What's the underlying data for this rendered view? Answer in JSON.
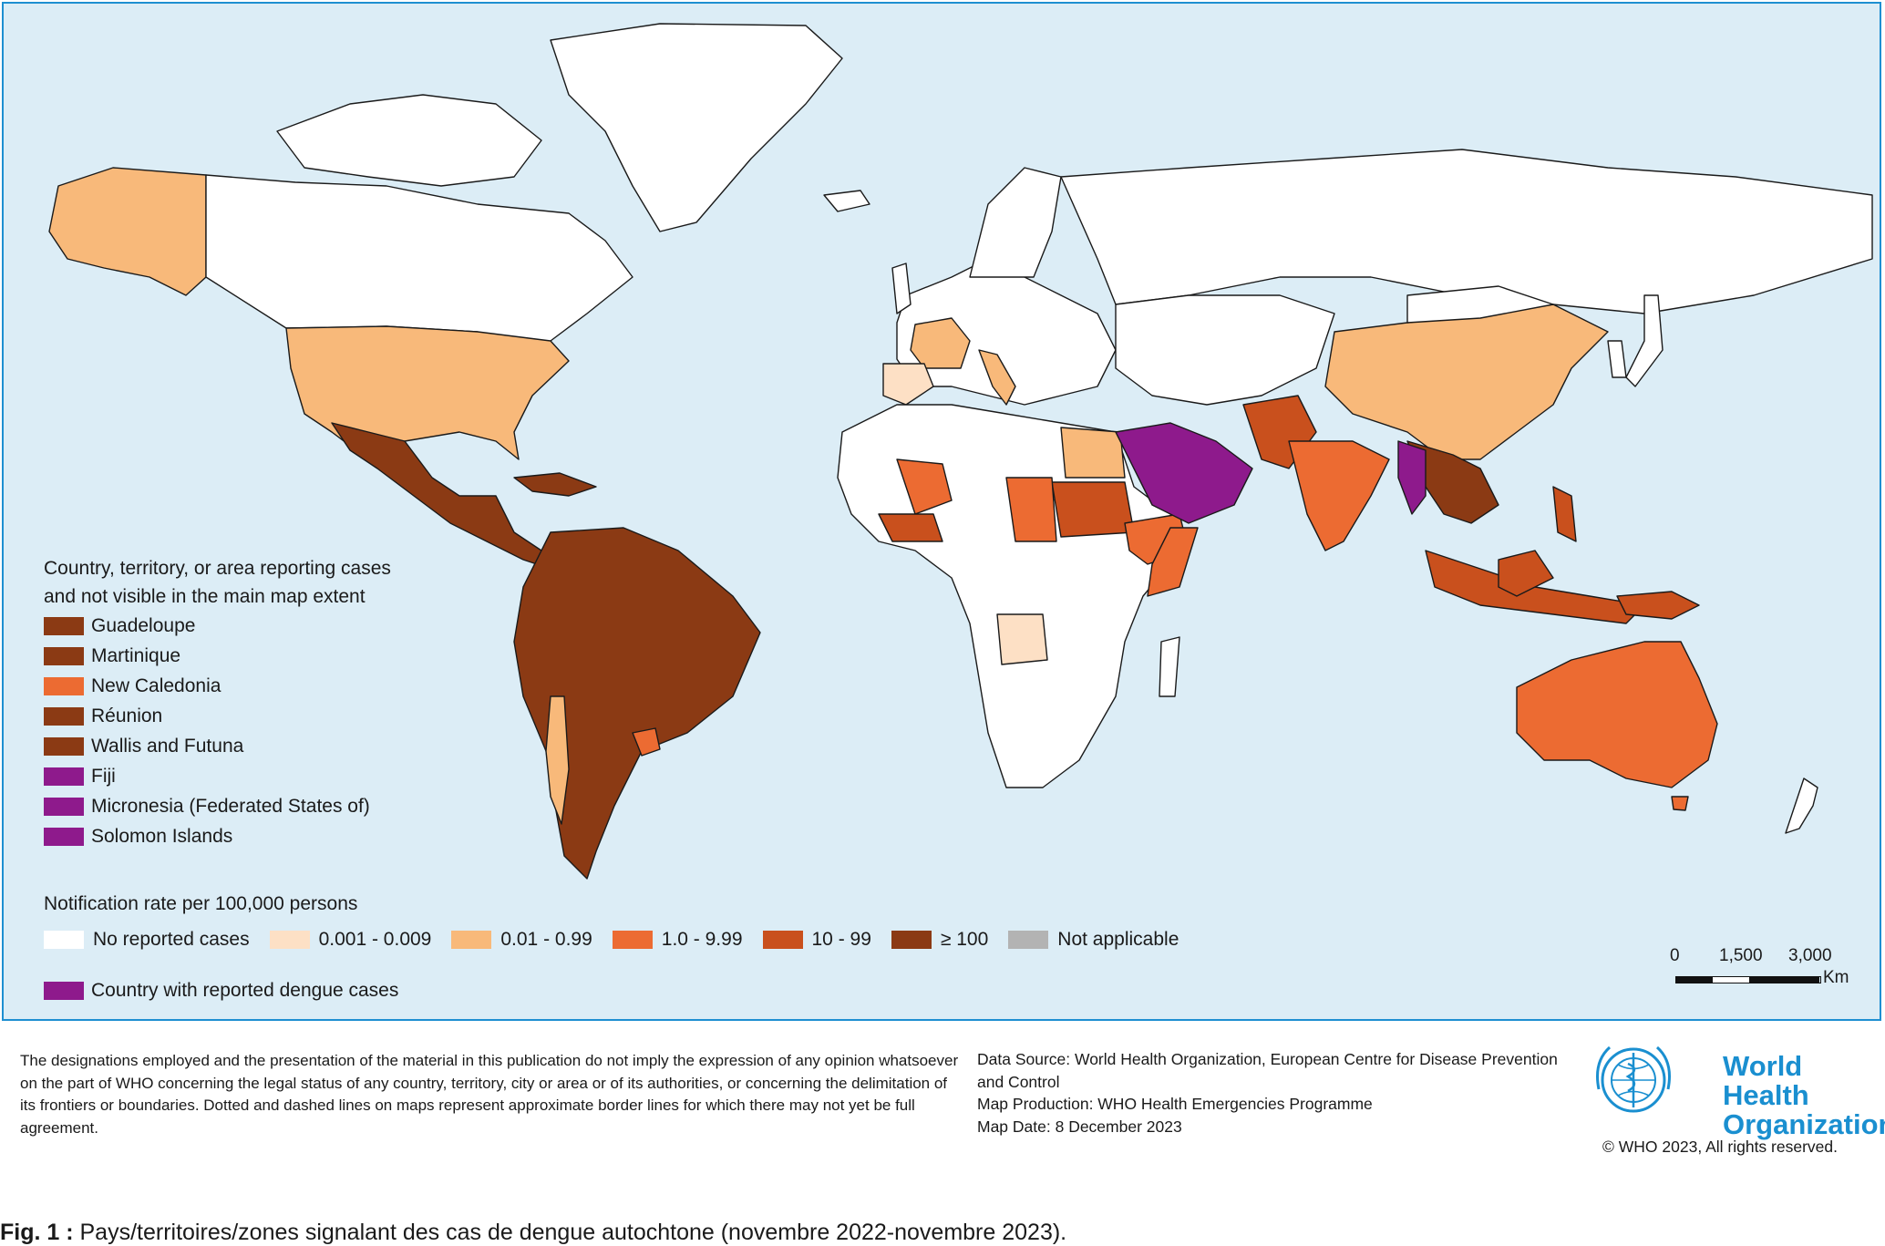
{
  "colors": {
    "ocean": "#dcedf6",
    "no_cases": "#ffffff",
    "r0001": "#fde0c5",
    "r001": "#f8b97a",
    "r1": "#ec6b32",
    "r10": "#c9501d",
    "r100": "#8b3a14",
    "na": "#b3b3b3",
    "dengue": "#8e1a8c",
    "border": "#1e8fd1"
  },
  "inset_legend": {
    "title_line1": "Country, territory, or area reporting cases",
    "title_line2": "and not visible in the main map extent",
    "items": [
      {
        "label": "Guadeloupe",
        "color": "#8b3a14"
      },
      {
        "label": "Martinique",
        "color": "#8b3a14"
      },
      {
        "label": "New Caledonia",
        "color": "#ec6b32"
      },
      {
        "label": "Réunion",
        "color": "#8b3a14"
      },
      {
        "label": "Wallis and Futuna",
        "color": "#8b3a14"
      },
      {
        "label": "Fiji",
        "color": "#8e1a8c"
      },
      {
        "label": "Micronesia (Federated States of)",
        "color": "#8e1a8c"
      },
      {
        "label": "Solomon Islands",
        "color": "#8e1a8c"
      }
    ]
  },
  "rate_legend": {
    "title": "Notification rate per 100,000 persons",
    "items": [
      {
        "label": "No reported cases",
        "color": "#ffffff"
      },
      {
        "label": "0.001 - 0.009",
        "color": "#fde0c5"
      },
      {
        "label": "0.01 - 0.99",
        "color": "#f8b97a"
      },
      {
        "label": "1.0 - 9.99",
        "color": "#ec6b32"
      },
      {
        "label": "10 - 99",
        "color": "#c9501d"
      },
      {
        "label": "≥ 100",
        "color": "#8b3a14"
      },
      {
        "label": "Not applicable",
        "color": "#b3b3b3"
      }
    ],
    "dengue_label": "Country with reported dengue cases",
    "dengue_color": "#8e1a8c"
  },
  "scale_bar": {
    "labels": [
      "0",
      "1,500",
      "3,000"
    ],
    "unit": "Km"
  },
  "footer": {
    "disclaimer": "The designations employed and the presentation of the material in this publication do not imply the expression of any opinion whatsoever on the part of WHO concerning the legal status of any country, territory, city or area or of its authorities, or concerning the delimitation of its frontiers or boundaries. Dotted and dashed lines on maps represent approximate border lines for which there may not yet be full agreement.",
    "data_source": "Data Source: World Health Organization, European Centre for Disease Prevention and Control",
    "map_production": "Map Production: WHO Health Emergencies Programme",
    "map_date": "Map Date: 8 December 2023",
    "org_line1": "World Health",
    "org_line2": "Organization",
    "copyright": "© WHO 2023, All rights reserved."
  },
  "caption": {
    "label": "Fig. 1 :",
    "text": " Pays/territoires/zones signalant des cas de dengue autochtone (novembre 2022-novembre 2023)."
  }
}
